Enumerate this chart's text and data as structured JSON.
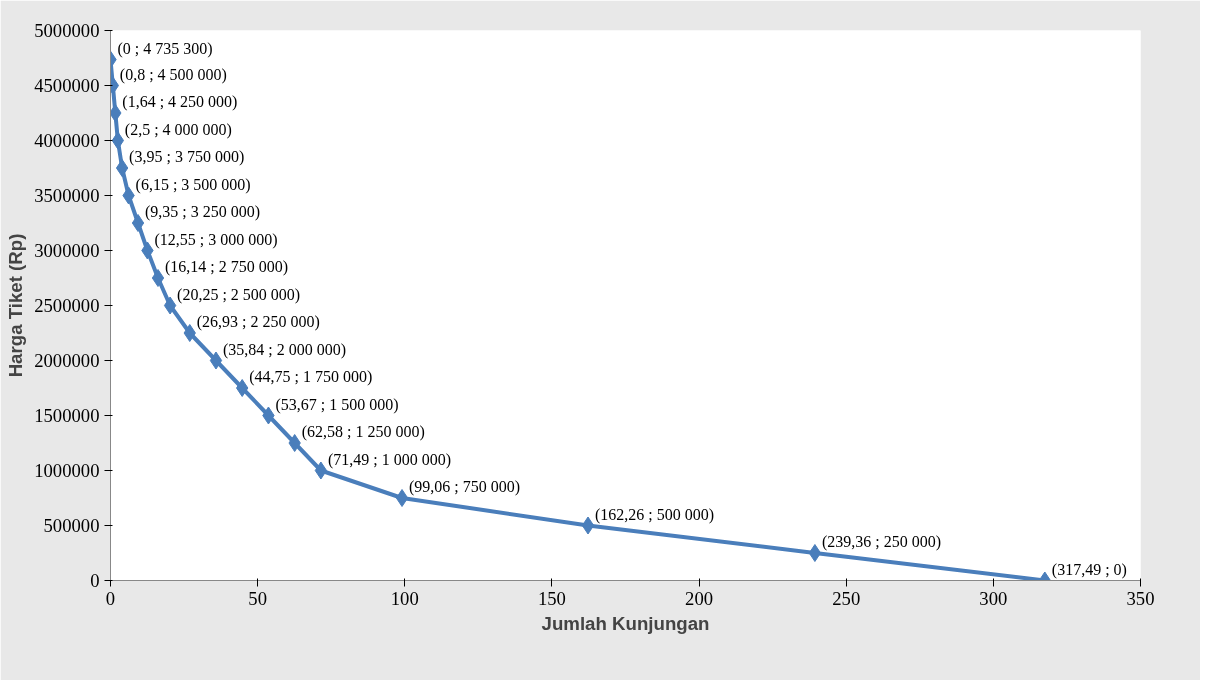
{
  "chart_data": {
    "type": "line",
    "xlabel": "Jumlah Kunjungan",
    "ylabel": "Harga Tiket (Rp)",
    "x": [
      0,
      0.8,
      1.64,
      2.5,
      3.95,
      6.15,
      9.35,
      12.55,
      16.14,
      20.25,
      26.93,
      35.84,
      44.75,
      53.67,
      62.58,
      71.49,
      99.06,
      162.26,
      239.36,
      317.49
    ],
    "series": [
      {
        "color": "#4a7ebb",
        "values": [
          4735300,
          4500000,
          4250000,
          4000000,
          3750000,
          3500000,
          3250000,
          3000000,
          2750000,
          2500000,
          2250000,
          2000000,
          1750000,
          1500000,
          1250000,
          1000000,
          750000,
          500000,
          250000,
          0
        ],
        "value_labels": [
          "(0 ; 4 735 300)",
          "(0,8 ; 4 500 000)",
          "(1,64 ; 4 250 000)",
          "(2,5 ; 4 000 000)",
          "(3,95 ; 3 750 000)",
          "(6,15 ; 3 500 000)",
          "(9,35 ; 3 250 000)",
          "(12,55 ; 3 000 000)",
          "(16,14 ; 2 750 000)",
          "(20,25 ; 2 500 000)",
          "(26,93 ; 2 250 000)",
          "(35,84 ; 2 000 000)",
          "(44,75 ; 1 750 000)",
          "(53,67 ; 1 500 000)",
          "(62,58 ; 1 250 000)",
          "(71,49 ; 1 000 000)",
          "(99,06 ; 750 000)",
          "(162,26 ; 500 000)",
          "(239,36 ; 250 000)",
          "(317,49 ; 0)"
        ]
      }
    ],
    "xlim": [
      0,
      350
    ],
    "xticks": [
      0,
      50,
      100,
      150,
      200,
      250,
      300,
      350
    ],
    "ylim": [
      0,
      5000000
    ],
    "yticks": [
      0,
      500000,
      1000000,
      1500000,
      2000000,
      2500000,
      3000000,
      3500000,
      4000000,
      4500000,
      5000000
    ],
    "marker": "diamond",
    "line_style": "solid",
    "grid": false
  }
}
